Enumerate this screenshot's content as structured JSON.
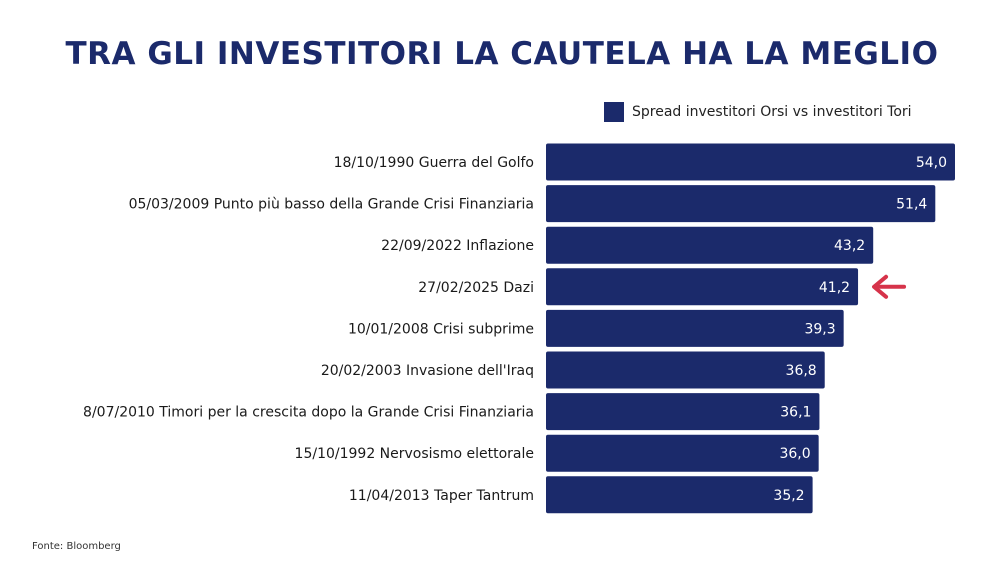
{
  "title": "TRA GLI INVESTITORI LA CAUTELA HA LA MEGLIO",
  "source": "Fonte: Bloomberg",
  "colors": {
    "bar": "#1b2a6b",
    "arrow": "#d6334a",
    "title": "#1b2a6b"
  },
  "chart_data": {
    "type": "bar",
    "orientation": "horizontal",
    "categories": [
      "18/10/1990 Guerra del Golfo",
      "05/03/2009 Punto più basso della Grande Crisi Finanziaria",
      "22/09/2022 Inflazione",
      "27/02/2025 Dazi",
      "10/01/2008 Crisi subprime",
      "20/02/2003 Invasione dell'Iraq",
      "8/07/2010 Timori per la crescita dopo la Grande Crisi Finanziaria",
      "15/10/1992 Nervosismo elettorale",
      "11/04/2013 Taper Tantrum"
    ],
    "series": [
      {
        "name": "Spread investitori Orsi vs investitori Tori",
        "values": [
          54.0,
          51.4,
          43.2,
          41.2,
          39.3,
          36.8,
          36.1,
          36.0,
          35.2
        ],
        "value_labels": [
          "54,0",
          "51,4",
          "43,2",
          "41,2",
          "39,3",
          "36,8",
          "36,1",
          "36,0",
          "35,2"
        ]
      }
    ],
    "highlight": {
      "category": "27/02/2025 Dazi",
      "marker": "arrow"
    },
    "legend_position": "top-right",
    "grid": false
  }
}
